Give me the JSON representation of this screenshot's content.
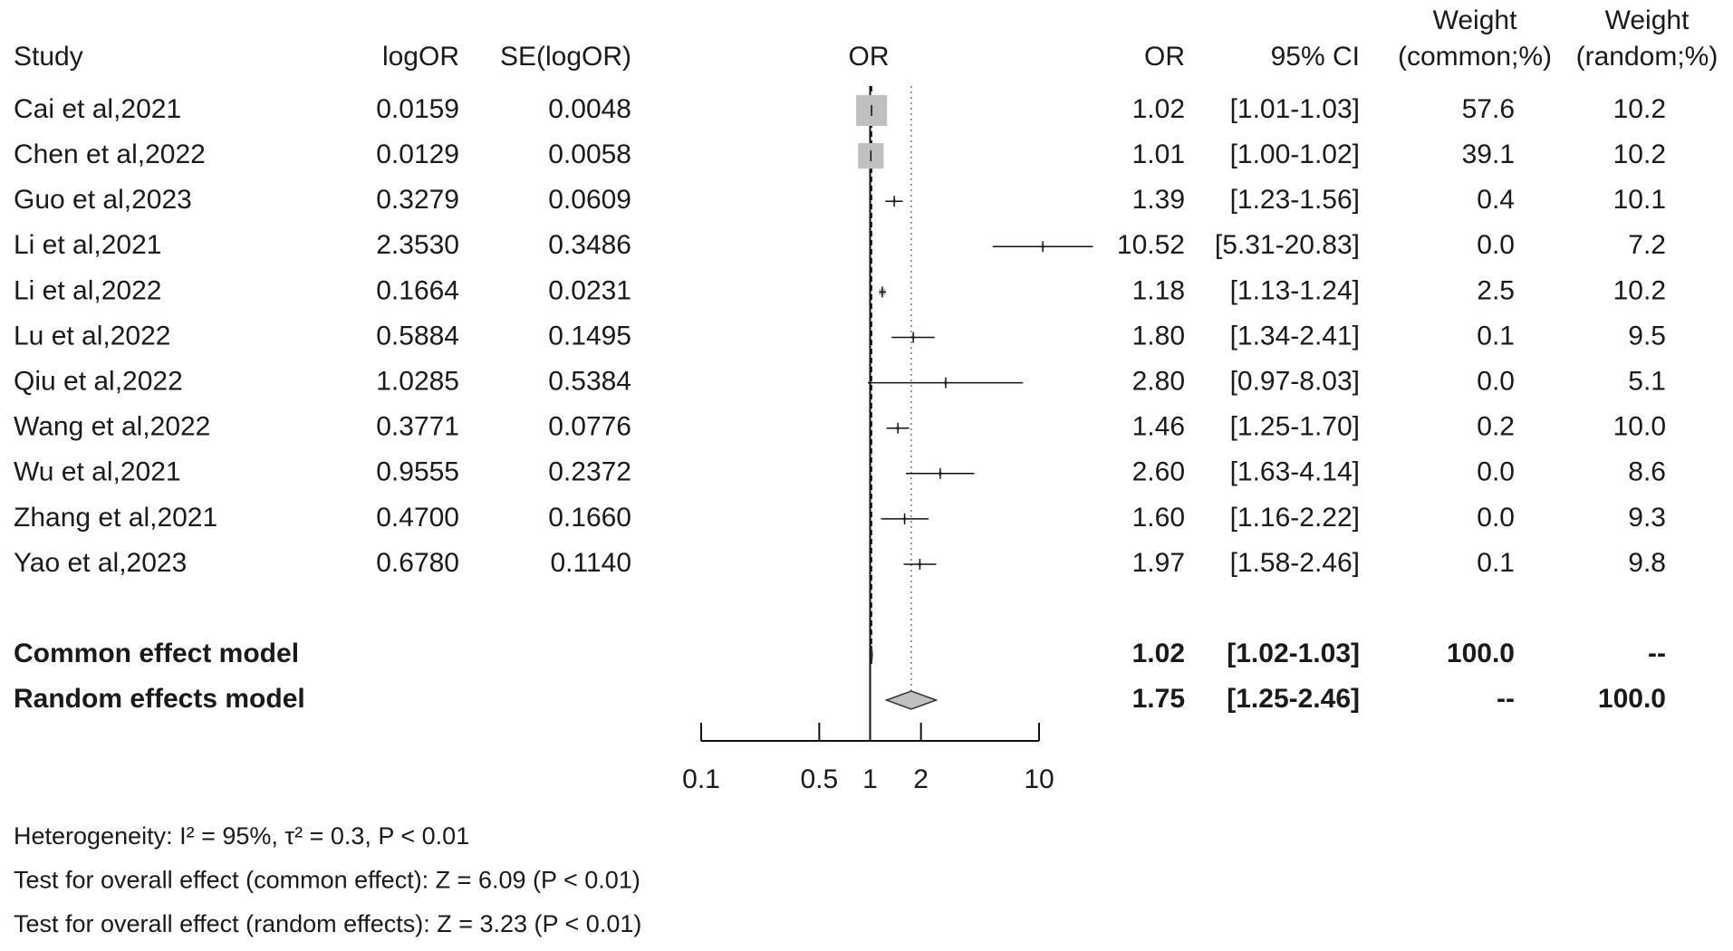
{
  "chart_data": {
    "type": "forest",
    "column_headers": {
      "study": "Study",
      "logor": "logOR",
      "se": "SE(logOR)",
      "plot": "OR",
      "or": "OR",
      "ci": "95% CI",
      "weight_common": [
        "Weight",
        "(common;%)"
      ],
      "weight_random": [
        "Weight",
        "(random;%)"
      ]
    },
    "categories": [
      "Cai et al,2021",
      "Chen et al,2022",
      "Guo et al,2023",
      "Li et al,2021",
      "Li et al,2022",
      "Lu et al,2022",
      "Qiu et al,2022",
      "Wang et al,2022",
      "Wu et al,2021",
      "Zhang et al,2021",
      "Yao et al,2023"
    ],
    "logor": [
      "0.0159",
      "0.0129",
      "0.3279",
      "2.3530",
      "0.1664",
      "0.5884",
      "1.0285",
      "0.3771",
      "0.9555",
      "0.4700",
      "0.6780"
    ],
    "se": [
      "0.0048",
      "0.0058",
      "0.0609",
      "0.3486",
      "0.0231",
      "0.1495",
      "0.5384",
      "0.0776",
      "0.2372",
      "0.1660",
      "0.1140"
    ],
    "values": [
      1.02,
      1.01,
      1.39,
      10.52,
      1.18,
      1.8,
      2.8,
      1.46,
      2.6,
      1.6,
      1.97
    ],
    "value_labels": [
      "1.02",
      "1.01",
      "1.39",
      "10.52",
      "1.18",
      "1.80",
      "2.80",
      "1.46",
      "2.60",
      "1.60",
      "1.97"
    ],
    "ci_low": [
      1.01,
      1.0,
      1.23,
      5.31,
      1.13,
      1.34,
      0.97,
      1.25,
      1.63,
      1.16,
      1.58
    ],
    "ci_high": [
      1.03,
      1.02,
      1.56,
      20.83,
      1.24,
      2.41,
      8.03,
      1.7,
      4.14,
      2.22,
      2.46
    ],
    "ci_labels": [
      "[1.01-1.03]",
      "[1.00-1.02]",
      "[1.23-1.56]",
      "[5.31-20.83]",
      "[1.13-1.24]",
      "[1.34-2.41]",
      "[0.97-8.03]",
      "[1.25-1.70]",
      "[1.63-4.14]",
      "[1.16-2.22]",
      "[1.58-2.46]"
    ],
    "weight_common": [
      57.6,
      39.1,
      0.4,
      0,
      2.5,
      0.1,
      0,
      0.2,
      0,
      0,
      0.1
    ],
    "weight_common_labels": [
      "57.6",
      "39.1",
      "0.4",
      "0.0",
      "2.5",
      "0.1",
      "0.0",
      "0.2",
      "0.0",
      "0.0",
      "0.1"
    ],
    "weight_random": [
      10.2,
      10.2,
      10.1,
      7.2,
      10.2,
      9.5,
      5.1,
      10,
      8.6,
      9.3,
      9.8
    ],
    "weight_random_labels": [
      "10.2",
      "10.2",
      "10.1",
      "7.2",
      "10.2",
      "9.5",
      "5.1",
      "10.0",
      "8.6",
      "9.3",
      "9.8"
    ],
    "pooled": [
      {
        "name": "Common effect model",
        "value": 1.02,
        "value_label": "1.02",
        "ci_low": 1.02,
        "ci_high": 1.03,
        "ci_label": "[1.02-1.03]",
        "weight_common": "100.0",
        "weight_random": "--"
      },
      {
        "name": "Random effects model",
        "value": 1.75,
        "value_label": "1.75",
        "ci_low": 1.25,
        "ci_high": 2.46,
        "ci_label": "[1.25-2.46]",
        "weight_common": "--",
        "weight_random": "100.0"
      }
    ],
    "ref_line": 1,
    "xlim": [
      0.1,
      10
    ],
    "xticks": [
      0.1,
      0.5,
      1,
      2,
      10
    ],
    "log_x": true,
    "square_color": "#c0c0c0",
    "diamond_color": "#c0c0c0",
    "notes": [
      "Heterogeneity: I² = 95%, τ² = 0.3, P < 0.01",
      "Test for overall effect (common effect): Z = 6.09 (P < 0.01)",
      "Test for overall effect (random effects): Z = 3.23 (P < 0.01)"
    ]
  }
}
